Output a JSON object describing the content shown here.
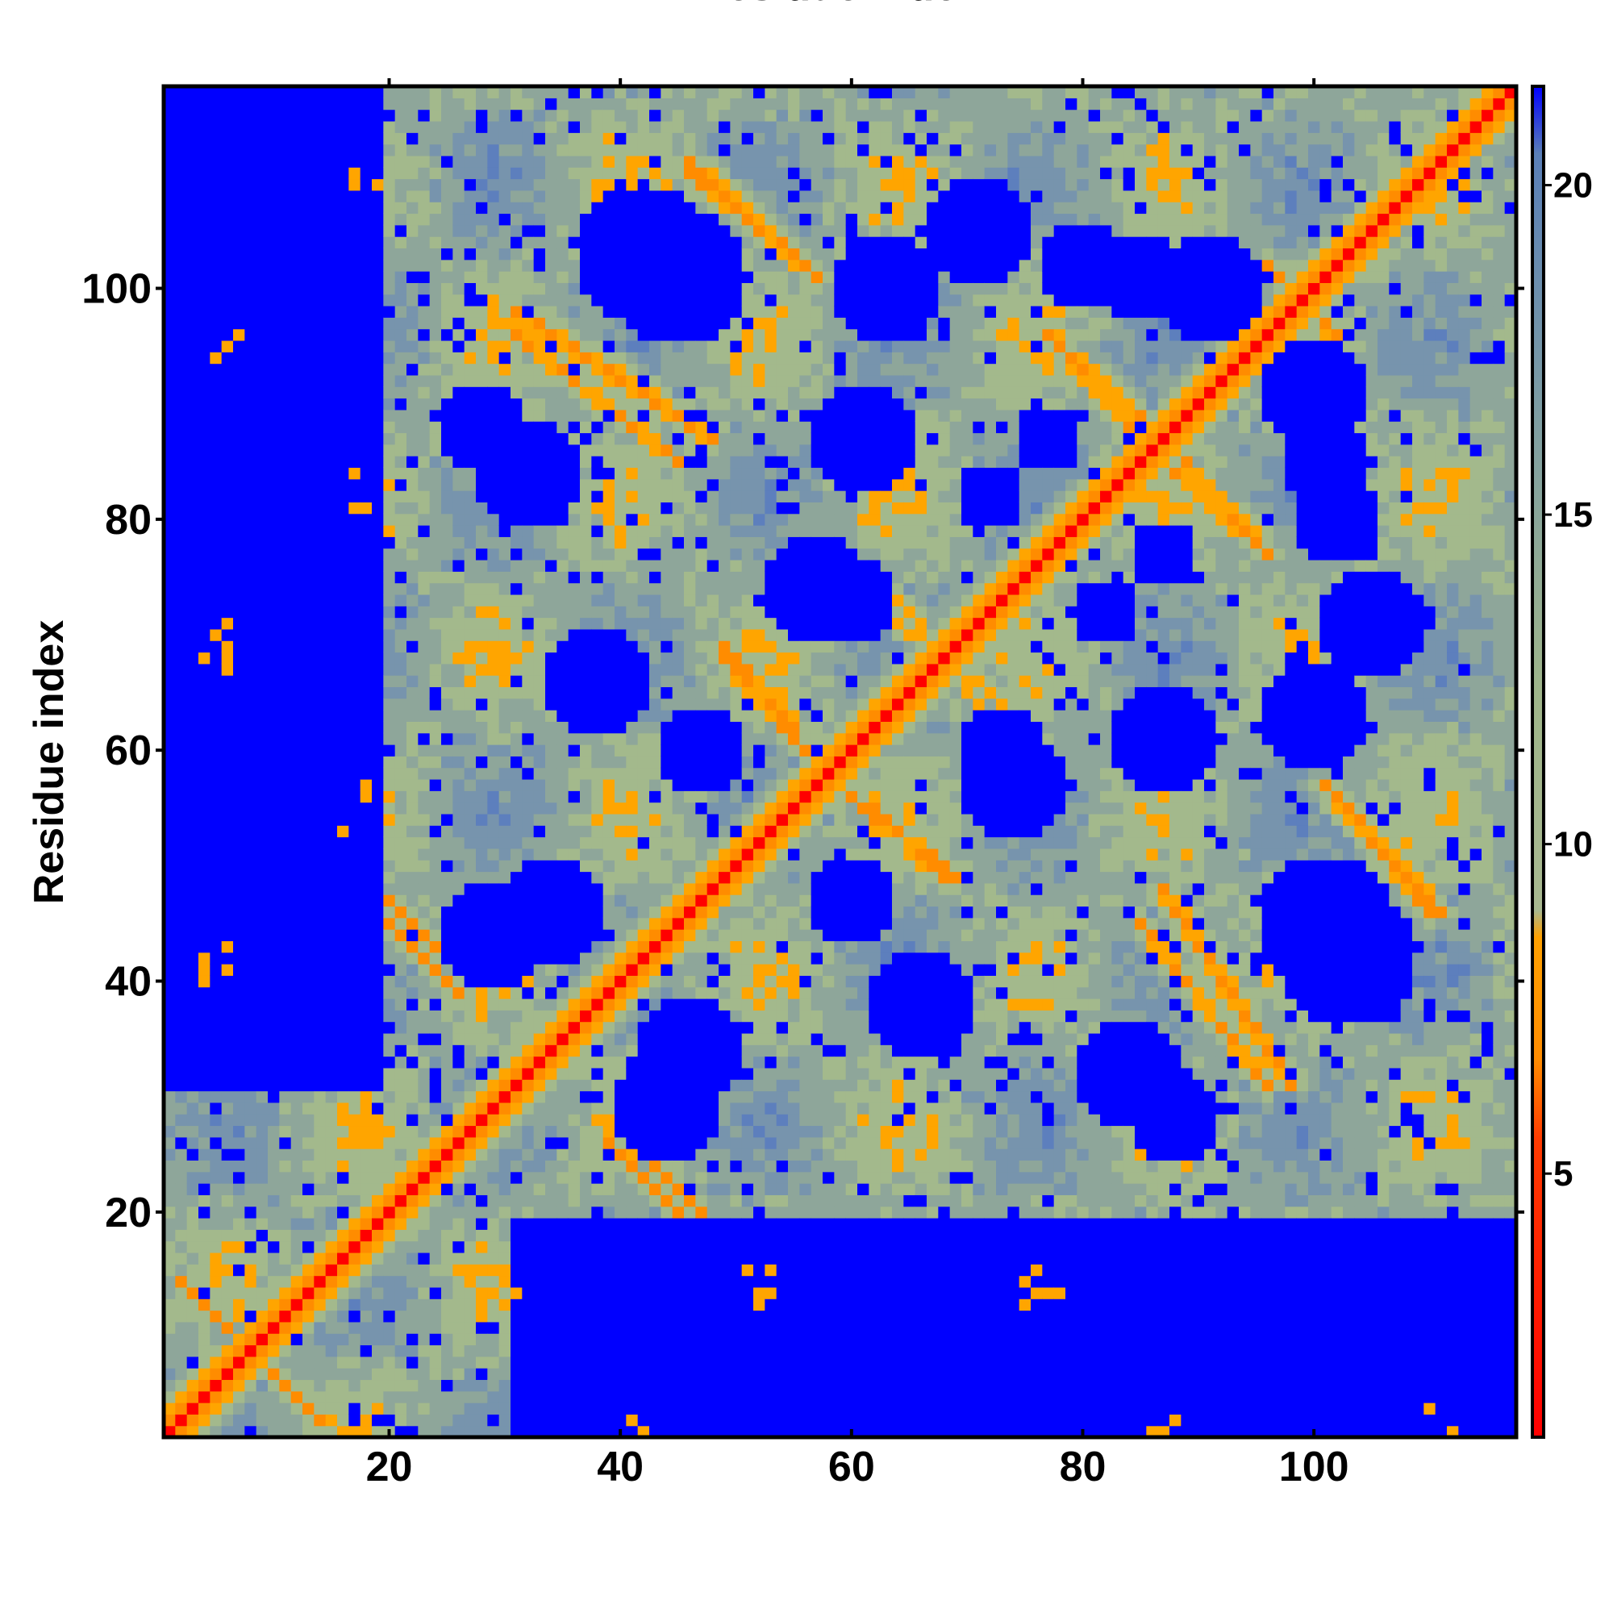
{
  "chart_data": {
    "type": "heatmap",
    "title": "",
    "xlabel": "Residue index",
    "ylabel": "Residue index",
    "x_range": [
      1,
      117
    ],
    "y_range": [
      1,
      117
    ],
    "x_ticks": [
      20,
      40,
      60,
      80,
      100
    ],
    "y_ticks": [
      20,
      40,
      60,
      80,
      100
    ],
    "colorbar": {
      "range": [
        1,
        21.5
      ],
      "ticks": [
        5,
        10,
        15,
        20
      ],
      "colors": [
        "#ff0000",
        "#ff8c00",
        "#9fb58a",
        "#6a8ab0",
        "#0000ff"
      ],
      "cutoff_color": "#0000ff"
    },
    "pattern": {
      "diagonal_band": {
        "value_on_diagonal": 2.0
      },
      "contact_segments": [
        {
          "x": [
            42,
            47
          ],
          "y": [
            20,
            25
          ],
          "value": 6
        },
        {
          "x": [
            20,
            26
          ],
          "y": [
            39,
            45
          ],
          "value": 6
        },
        {
          "x": [
            2,
            12
          ],
          "y": [
            4,
            14
          ],
          "value": 6
        },
        {
          "x": [
            62,
            69
          ],
          "y": [
            49,
            55
          ],
          "value": 6
        },
        {
          "x": [
            49,
            56
          ],
          "y": [
            60,
            68
          ],
          "value": 6
        },
        {
          "x": [
            85,
            96
          ],
          "y": [
            31,
            45
          ],
          "value": 6
        },
        {
          "x": [
            102,
            110
          ],
          "y": [
            46,
            56
          ],
          "value": 6
        },
        {
          "x": [
            64,
            72
          ],
          "y": [
            63,
            73
          ],
          "value": 7
        },
        {
          "x": [
            31,
            48
          ],
          "y": [
            87,
            98
          ],
          "value": 6
        },
        {
          "x": [
            77,
            88
          ],
          "y": [
            86,
            96
          ],
          "value": 6
        },
        {
          "x": [
            86,
            95
          ],
          "y": [
            78,
            86
          ],
          "value": 6
        },
        {
          "x": [
            46,
            57
          ],
          "y": [
            101,
            111
          ],
          "value": 6
        },
        {
          "x": [
            96,
            102
          ],
          "y": [
            96,
            102
          ],
          "value": 6
        }
      ],
      "voids": [
        {
          "x": 42,
          "y": 103,
          "r": 6
        },
        {
          "x": 63,
          "y": 100,
          "r": 5
        },
        {
          "x": 32,
          "y": 84,
          "r": 5
        },
        {
          "x": 80,
          "y": 102,
          "r": 4
        },
        {
          "x": 91,
          "y": 100,
          "r": 5
        },
        {
          "x": 101,
          "y": 85,
          "r": 4
        },
        {
          "x": 38,
          "y": 66,
          "r": 5
        },
        {
          "x": 60,
          "y": 73,
          "r": 4
        },
        {
          "x": 74,
          "y": 57,
          "r": 5
        },
        {
          "x": 87,
          "y": 61,
          "r": 5
        },
        {
          "x": 34,
          "y": 46,
          "r": 5
        },
        {
          "x": 60,
          "y": 47,
          "r": 4
        },
        {
          "x": 44,
          "y": 29,
          "r": 5
        },
        {
          "x": 101,
          "y": 45,
          "r": 6
        },
        {
          "x": 88,
          "y": 28,
          "r": 4
        },
        {
          "x": 105,
          "y": 71,
          "r": 5
        },
        {
          "x": 87,
          "y": 77,
          "r": 3
        },
        {
          "x": 72,
          "y": 82,
          "r": 3
        }
      ]
    }
  }
}
